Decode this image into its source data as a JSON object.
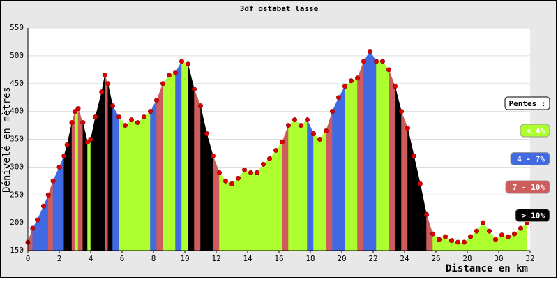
{
  "chart_data": {
    "type": "elevation",
    "title": "3df ostabat lasse",
    "x_label": "Distance en km",
    "y_label": "Dénivelé en mètres",
    "legend_title": "Pentes :",
    "series": [
      {
        "name": "< 4%",
        "color": "#adff2f"
      },
      {
        "name": "4 - 7%",
        "color": "#4169e1"
      },
      {
        "name": "7 - 10%",
        "color": "#cd5c5c"
      },
      {
        "name": "> 10%",
        "color": "#000000"
      }
    ],
    "point_color": "#dd0000",
    "xlim": [
      0,
      32
    ],
    "xticks": [
      0,
      2,
      4,
      6,
      8,
      10,
      12,
      14,
      16,
      18,
      20,
      22,
      24,
      26,
      28,
      30,
      32
    ],
    "ylim": [
      150,
      550
    ],
    "yticks": [
      150,
      200,
      250,
      300,
      350,
      400,
      450,
      500,
      550
    ],
    "grid": true,
    "x": [
      0,
      0.3,
      0.6,
      1.0,
      1.3,
      1.6,
      2.0,
      2.3,
      2.5,
      2.8,
      3.0,
      3.2,
      3.5,
      3.8,
      4.0,
      4.3,
      4.7,
      4.9,
      5.1,
      5.4,
      5.8,
      6.2,
      6.6,
      7.0,
      7.4,
      7.8,
      8.2,
      8.6,
      9.0,
      9.4,
      9.8,
      10.2,
      10.6,
      11.0,
      11.4,
      11.8,
      12.2,
      12.6,
      13.0,
      13.4,
      13.8,
      14.2,
      14.6,
      15.0,
      15.4,
      15.8,
      16.2,
      16.6,
      17.0,
      17.4,
      17.8,
      18.2,
      18.6,
      19.0,
      19.4,
      19.8,
      20.2,
      20.6,
      21.0,
      21.4,
      21.8,
      22.2,
      22.6,
      23.0,
      23.4,
      23.8,
      24.2,
      24.6,
      25.0,
      25.4,
      25.8,
      26.2,
      26.6,
      27.0,
      27.4,
      27.8,
      28.2,
      28.6,
      29.0,
      29.4,
      29.8,
      30.2,
      30.6,
      31.0,
      31.4,
      31.8
    ],
    "values": [
      165,
      190,
      205,
      230,
      250,
      275,
      300,
      320,
      340,
      380,
      400,
      405,
      380,
      345,
      350,
      390,
      435,
      465,
      450,
      410,
      390,
      375,
      385,
      380,
      390,
      400,
      420,
      450,
      465,
      470,
      490,
      485,
      440,
      410,
      360,
      320,
      290,
      275,
      270,
      280,
      295,
      290,
      290,
      305,
      315,
      330,
      345,
      375,
      385,
      375,
      385,
      360,
      350,
      365,
      400,
      425,
      445,
      455,
      460,
      490,
      508,
      490,
      490,
      475,
      445,
      400,
      370,
      320,
      270,
      215,
      180,
      170,
      175,
      168,
      165,
      165,
      175,
      185,
      200,
      185,
      170,
      178,
      175,
      180,
      190,
      200
    ],
    "segment_colors": [
      "#cd5c5c",
      "#4169e1",
      "#4169e1",
      "#4169e1",
      "#cd5c5c",
      "#4169e1",
      "#4169e1",
      "#000000",
      "#000000",
      "#cd5c5c",
      "#adff2f",
      "#cd5c5c",
      "#000000",
      "#adff2f",
      "#000000",
      "#000000",
      "#000000",
      "#cd5c5c",
      "#000000",
      "#4169e1",
      "#adff2f",
      "#adff2f",
      "#adff2f",
      "#adff2f",
      "#adff2f",
      "#4169e1",
      "#cd5c5c",
      "#adff2f",
      "#adff2f",
      "#4169e1",
      "#adff2f",
      "#000000",
      "#cd5c5c",
      "#000000",
      "#000000",
      "#cd5c5c",
      "#adff2f",
      "#adff2f",
      "#adff2f",
      "#adff2f",
      "#adff2f",
      "#adff2f",
      "#adff2f",
      "#adff2f",
      "#adff2f",
      "#adff2f",
      "#cd5c5c",
      "#adff2f",
      "#adff2f",
      "#adff2f",
      "#4169e1",
      "#adff2f",
      "#adff2f",
      "#cd5c5c",
      "#4169e1",
      "#4169e1",
      "#adff2f",
      "#adff2f",
      "#cd5c5c",
      "#4169e1",
      "#4169e1",
      "#adff2f",
      "#adff2f",
      "#cd5c5c",
      "#000000",
      "#cd5c5c",
      "#000000",
      "#000000",
      "#000000",
      "#cd5c5c",
      "#adff2f",
      "#adff2f",
      "#adff2f",
      "#adff2f",
      "#adff2f",
      "#adff2f",
      "#adff2f",
      "#adff2f",
      "#adff2f",
      "#adff2f",
      "#adff2f",
      "#adff2f",
      "#adff2f",
      "#adff2f",
      "#adff2f"
    ]
  }
}
